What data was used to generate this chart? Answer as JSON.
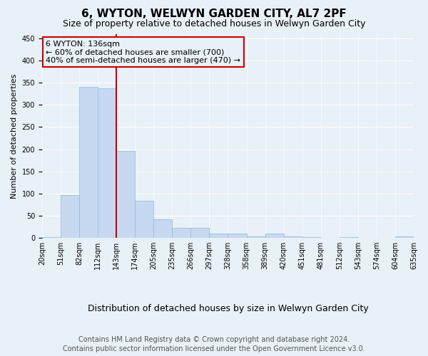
{
  "title": "6, WYTON, WELWYN GARDEN CITY, AL7 2PF",
  "subtitle": "Size of property relative to detached houses in Welwyn Garden City",
  "xlabel": "Distribution of detached houses by size in Welwyn Garden City",
  "ylabel": "Number of detached properties",
  "footer_line1": "Contains HM Land Registry data © Crown copyright and database right 2024.",
  "footer_line2": "Contains public sector information licensed under the Open Government Licence v3.0.",
  "annotation_line1": "6 WYTON: 136sqm",
  "annotation_line2": "← 60% of detached houses are smaller (700)",
  "annotation_line3": "40% of semi-detached houses are larger (470) →",
  "bar_values": [
    2,
    97,
    340,
    338,
    196,
    83,
    42,
    22,
    22,
    10,
    10,
    3,
    10,
    3,
    2,
    1,
    2,
    1,
    1,
    3
  ],
  "bin_labels": [
    "20sqm",
    "51sqm",
    "82sqm",
    "112sqm",
    "143sqm",
    "174sqm",
    "205sqm",
    "235sqm",
    "266sqm",
    "297sqm",
    "328sqm",
    "358sqm",
    "389sqm",
    "420sqm",
    "451sqm",
    "481sqm",
    "512sqm",
    "543sqm",
    "574sqm",
    "604sqm",
    "635sqm"
  ],
  "bar_color": "#c6d9f1",
  "bar_edge_color": "#8fb8d8",
  "vline_color": "#cc0000",
  "annotation_box_color": "#cc0000",
  "background_color": "#e8f0f8",
  "ylim": [
    0,
    460
  ],
  "yticks": [
    0,
    50,
    100,
    150,
    200,
    250,
    300,
    350,
    400,
    450
  ],
  "title_fontsize": 11,
  "subtitle_fontsize": 9,
  "xlabel_fontsize": 9,
  "ylabel_fontsize": 8,
  "tick_fontsize": 7,
  "annotation_fontsize": 8,
  "footer_fontsize": 7
}
